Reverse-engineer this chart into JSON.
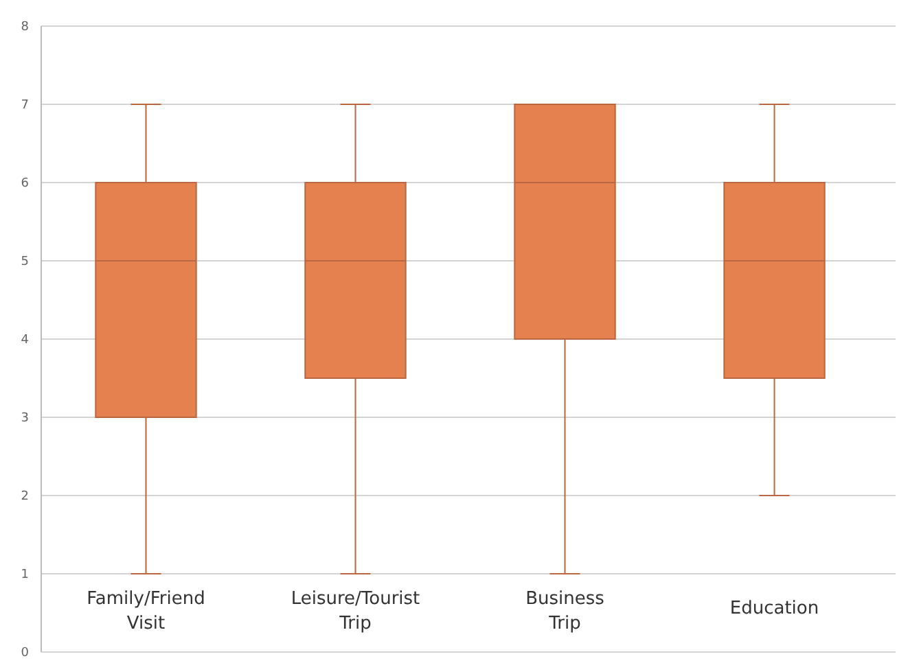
{
  "chart_data": {
    "type": "box",
    "categories": [
      "Family/Friend\nVisit",
      "Leisure/Tourist\nTrip",
      "Business\nTrip",
      "Education"
    ],
    "boxes": [
      {
        "low": 1,
        "q1": 3,
        "median": 5,
        "q3": 6,
        "high": 7
      },
      {
        "low": 1,
        "q1": 3.5,
        "median": 5,
        "q3": 6,
        "high": 7
      },
      {
        "low": 1,
        "q1": 4,
        "median": 6,
        "q3": 7,
        "high": 7
      },
      {
        "low": 2,
        "q1": 3.5,
        "median": 5,
        "q3": 6,
        "high": 7
      }
    ],
    "color": "#e5804f",
    "ylim": [
      0,
      8
    ],
    "yticks": [
      0,
      1,
      2,
      3,
      4,
      5,
      6,
      7,
      8
    ],
    "grid": "y"
  }
}
